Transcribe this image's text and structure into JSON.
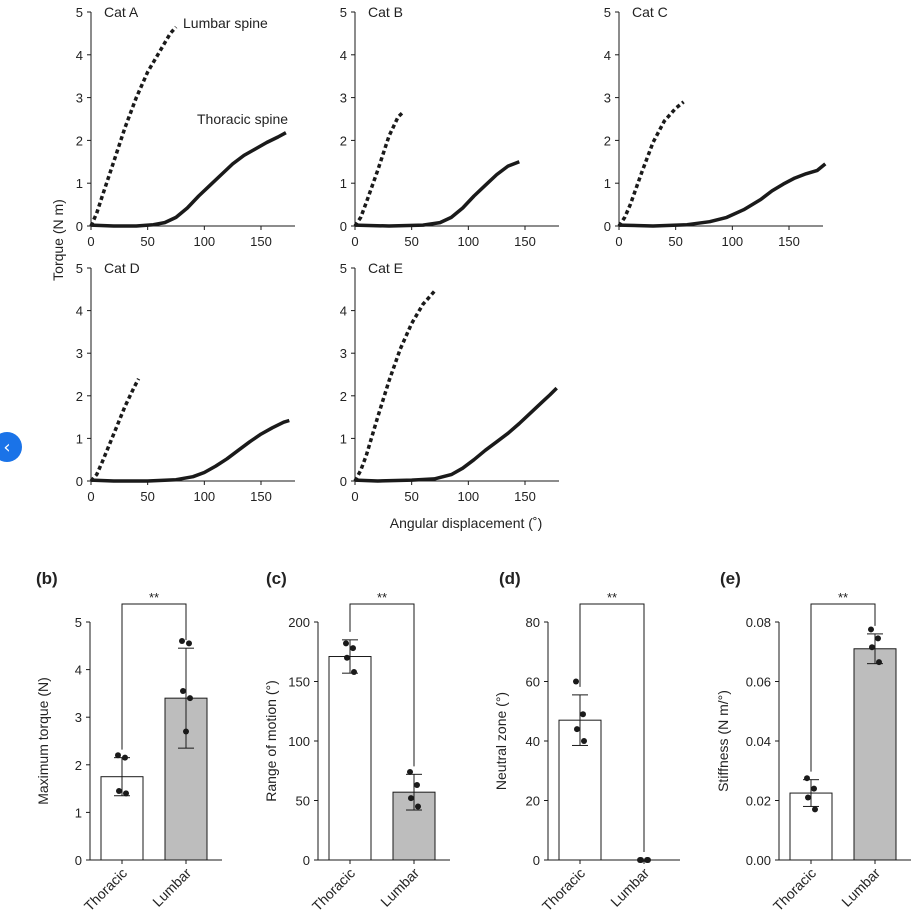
{
  "colors": {
    "ink": "#1a1a1a",
    "bar_thoracic": "#ffffff",
    "bar_lumbar": "#bdbdbd",
    "nav": "#1a73e8"
  },
  "nav": {
    "icon": "chevron-left-icon",
    "glyph": "‹"
  },
  "shared": {
    "ylabel_top": "Torque (N m)",
    "xlabel_top": "Angular displacement (˚)",
    "series_label_lumbar": "Lumbar spine",
    "series_label_thoracic": "Thoracic spine"
  },
  "chart_data": [
    {
      "type": "line",
      "panel": "Cat A",
      "title": "Cat A",
      "xlim": [
        0,
        180
      ],
      "ylim": [
        0,
        5
      ],
      "xticks": [
        0,
        50,
        100,
        150
      ],
      "yticks": [
        0,
        1,
        2,
        3,
        4,
        5
      ],
      "series": [
        {
          "name": "Lumbar spine",
          "style": "dashed",
          "points": [
            [
              0,
              0
            ],
            [
              5,
              0.3
            ],
            [
              10,
              0.7
            ],
            [
              20,
              1.5
            ],
            [
              30,
              2.3
            ],
            [
              40,
              3.0
            ],
            [
              50,
              3.6
            ],
            [
              60,
              4.05
            ],
            [
              70,
              4.5
            ],
            [
              75,
              4.65
            ]
          ]
        },
        {
          "name": "Thoracic spine",
          "style": "solid",
          "points": [
            [
              0,
              0.02
            ],
            [
              20,
              0
            ],
            [
              40,
              0
            ],
            [
              55,
              0.03
            ],
            [
              65,
              0.08
            ],
            [
              75,
              0.2
            ],
            [
              85,
              0.42
            ],
            [
              95,
              0.7
            ],
            [
              105,
              0.95
            ],
            [
              115,
              1.2
            ],
            [
              125,
              1.45
            ],
            [
              135,
              1.65
            ],
            [
              145,
              1.8
            ],
            [
              155,
              1.95
            ],
            [
              165,
              2.08
            ],
            [
              172,
              2.18
            ]
          ]
        }
      ]
    },
    {
      "type": "line",
      "panel": "Cat B",
      "title": "Cat B",
      "xlim": [
        0,
        180
      ],
      "ylim": [
        0,
        5
      ],
      "xticks": [
        0,
        50,
        100,
        150
      ],
      "yticks": [
        0,
        1,
        2,
        3,
        4,
        5
      ],
      "series": [
        {
          "name": "Lumbar spine",
          "style": "dashed",
          "points": [
            [
              0,
              0
            ],
            [
              5,
              0.2
            ],
            [
              10,
              0.55
            ],
            [
              20,
              1.3
            ],
            [
              30,
              2.1
            ],
            [
              38,
              2.55
            ],
            [
              42,
              2.65
            ]
          ]
        },
        {
          "name": "Thoracic spine",
          "style": "solid",
          "points": [
            [
              0,
              0.02
            ],
            [
              30,
              0
            ],
            [
              60,
              0.02
            ],
            [
              75,
              0.08
            ],
            [
              85,
              0.2
            ],
            [
              95,
              0.42
            ],
            [
              105,
              0.7
            ],
            [
              115,
              0.95
            ],
            [
              125,
              1.2
            ],
            [
              135,
              1.4
            ],
            [
              145,
              1.5
            ]
          ]
        }
      ]
    },
    {
      "type": "line",
      "panel": "Cat C",
      "title": "Cat C",
      "xlim": [
        0,
        180
      ],
      "ylim": [
        0,
        5
      ],
      "xticks": [
        0,
        50,
        100,
        150
      ],
      "yticks": [
        0,
        1,
        2,
        3,
        4,
        5
      ],
      "series": [
        {
          "name": "Lumbar spine",
          "style": "dashed",
          "points": [
            [
              0,
              0
            ],
            [
              5,
              0.2
            ],
            [
              10,
              0.5
            ],
            [
              20,
              1.25
            ],
            [
              30,
              1.95
            ],
            [
              40,
              2.45
            ],
            [
              50,
              2.75
            ],
            [
              57,
              2.9
            ]
          ]
        },
        {
          "name": "Thoracic spine",
          "style": "solid",
          "points": [
            [
              0,
              0.02
            ],
            [
              30,
              0
            ],
            [
              60,
              0.03
            ],
            [
              80,
              0.1
            ],
            [
              95,
              0.2
            ],
            [
              110,
              0.38
            ],
            [
              125,
              0.62
            ],
            [
              135,
              0.82
            ],
            [
              145,
              0.98
            ],
            [
              155,
              1.12
            ],
            [
              165,
              1.22
            ],
            [
              175,
              1.3
            ],
            [
              182,
              1.45
            ]
          ]
        }
      ]
    },
    {
      "type": "line",
      "panel": "Cat D",
      "title": "Cat D",
      "xlim": [
        0,
        180
      ],
      "ylim": [
        0,
        5
      ],
      "xticks": [
        0,
        50,
        100,
        150
      ],
      "yticks": [
        0,
        1,
        2,
        3,
        4,
        5
      ],
      "series": [
        {
          "name": "Lumbar spine",
          "style": "dashed",
          "points": [
            [
              0,
              0
            ],
            [
              5,
              0.15
            ],
            [
              10,
              0.45
            ],
            [
              20,
              1.1
            ],
            [
              30,
              1.75
            ],
            [
              38,
              2.2
            ],
            [
              42,
              2.4
            ]
          ]
        },
        {
          "name": "Thoracic spine",
          "style": "solid",
          "points": [
            [
              0,
              0.02
            ],
            [
              20,
              0
            ],
            [
              50,
              0
            ],
            [
              75,
              0.03
            ],
            [
              90,
              0.1
            ],
            [
              100,
              0.2
            ],
            [
              110,
              0.35
            ],
            [
              120,
              0.52
            ],
            [
              130,
              0.72
            ],
            [
              140,
              0.92
            ],
            [
              150,
              1.1
            ],
            [
              160,
              1.25
            ],
            [
              170,
              1.38
            ],
            [
              175,
              1.42
            ]
          ]
        }
      ]
    },
    {
      "type": "line",
      "panel": "Cat E",
      "title": "Cat E",
      "xlim": [
        0,
        180
      ],
      "ylim": [
        0,
        5
      ],
      "xticks": [
        0,
        50,
        100,
        150
      ],
      "yticks": [
        0,
        1,
        2,
        3,
        4,
        5
      ],
      "series": [
        {
          "name": "Lumbar spine",
          "style": "dashed",
          "points": [
            [
              0,
              0
            ],
            [
              5,
              0.25
            ],
            [
              10,
              0.6
            ],
            [
              20,
              1.5
            ],
            [
              30,
              2.35
            ],
            [
              40,
              3.1
            ],
            [
              50,
              3.7
            ],
            [
              60,
              4.15
            ],
            [
              65,
              4.3
            ],
            [
              70,
              4.45
            ]
          ]
        },
        {
          "name": "Thoracic spine",
          "style": "solid",
          "points": [
            [
              0,
              0.02
            ],
            [
              20,
              0
            ],
            [
              50,
              0.02
            ],
            [
              70,
              0.05
            ],
            [
              85,
              0.15
            ],
            [
              95,
              0.3
            ],
            [
              105,
              0.5
            ],
            [
              115,
              0.72
            ],
            [
              125,
              0.92
            ],
            [
              135,
              1.12
            ],
            [
              145,
              1.35
            ],
            [
              155,
              1.6
            ],
            [
              165,
              1.85
            ],
            [
              172,
              2.02
            ],
            [
              178,
              2.18
            ]
          ]
        }
      ]
    },
    {
      "type": "bar",
      "panel": "(b)",
      "title": "(b)",
      "ylabel": "Maximum torque (N)",
      "ylim": [
        0,
        5
      ],
      "yticks": [
        0,
        1,
        2,
        3,
        4,
        5
      ],
      "ytick_labels": [
        "0",
        "1",
        "2",
        "3",
        "4",
        "5"
      ],
      "categories": [
        "Thoracic",
        "Lumbar"
      ],
      "values": [
        1.75,
        3.4
      ],
      "errors": [
        0.4,
        1.05
      ],
      "points": [
        [
          2.2,
          2.15,
          1.45,
          1.4
        ],
        [
          4.6,
          4.55,
          3.55,
          3.4,
          2.7
        ]
      ],
      "significance": "**"
    },
    {
      "type": "bar",
      "panel": "(c)",
      "title": "(c)",
      "ylabel": "Range of motion (°)",
      "ylim": [
        0,
        200
      ],
      "yticks": [
        0,
        50,
        100,
        150,
        200
      ],
      "ytick_labels": [
        "0",
        "50",
        "100",
        "150",
        "200"
      ],
      "categories": [
        "Thoracic",
        "Lumbar"
      ],
      "values": [
        171,
        57
      ],
      "errors": [
        14,
        15
      ],
      "points": [
        [
          182,
          178,
          170,
          158
        ],
        [
          74,
          63,
          52,
          45
        ]
      ],
      "significance": "**"
    },
    {
      "type": "bar",
      "panel": "(d)",
      "title": "(d)",
      "ylabel": "Neutral zone (°)",
      "ylim": [
        0,
        80
      ],
      "yticks": [
        0,
        20,
        40,
        60,
        80
      ],
      "ytick_labels": [
        "0",
        "20",
        "40",
        "60",
        "80"
      ],
      "categories": [
        "Thoracic",
        "Lumbar"
      ],
      "values": [
        47,
        0
      ],
      "errors": [
        8.5,
        0
      ],
      "points": [
        [
          60,
          49,
          44,
          40
        ],
        [
          0,
          0,
          0,
          0
        ]
      ],
      "significance": "**"
    },
    {
      "type": "bar",
      "panel": "(e)",
      "title": "(e)",
      "ylabel": "Stiffness (N m/°)",
      "ylim": [
        0,
        0.08
      ],
      "yticks": [
        0,
        0.02,
        0.04,
        0.06,
        0.08
      ],
      "ytick_labels": [
        "0.00",
        "0.02",
        "0.04",
        "0.06",
        "0.08"
      ],
      "categories": [
        "Thoracic",
        "Lumbar"
      ],
      "values": [
        0.0225,
        0.071
      ],
      "errors": [
        0.0045,
        0.005
      ],
      "points": [
        [
          0.0275,
          0.024,
          0.021,
          0.017
        ],
        [
          0.0775,
          0.0745,
          0.0715,
          0.0665
        ]
      ],
      "significance": "**"
    }
  ]
}
